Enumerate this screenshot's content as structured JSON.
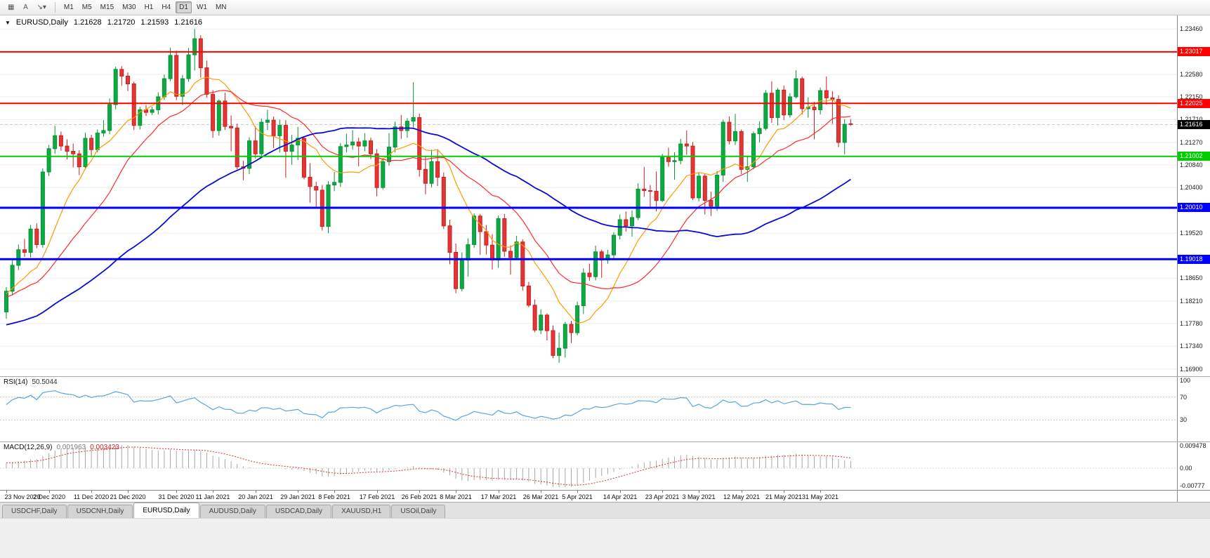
{
  "toolbar": {
    "icons": [
      {
        "name": "chart-type-icon",
        "glyph": "▦"
      },
      {
        "name": "text-tool-icon",
        "glyph": "A"
      },
      {
        "name": "draw-tool-icon",
        "glyph": "↘",
        "caret": "▾"
      }
    ],
    "timeframes": [
      "M1",
      "M5",
      "M15",
      "M30",
      "H1",
      "H4",
      "D1",
      "W1",
      "MN"
    ],
    "active_timeframe": "D1"
  },
  "chart": {
    "title": {
      "marker": "▼",
      "symbol": "EURUSD,Daily",
      "open": "1.21628",
      "high": "1.21720",
      "low": "1.21593",
      "close": "1.21616"
    }
  },
  "rsi_panel": {
    "name": "RSI(14)",
    "value": "50.5044"
  },
  "macd_panel": {
    "name": "MACD(12,26,9)",
    "main_value": "0.001963",
    "signal_value": "0.003423"
  },
  "tab_bar": {
    "tabs": [
      "USDCHF,Daily",
      "USDCNH,Daily",
      "EURUSD,Daily",
      "AUDUSD,Daily",
      "USDCAD,Daily",
      "XAUUSD,H1",
      "USOil,Daily"
    ],
    "active": "EURUSD,Daily"
  },
  "chart_data": {
    "type": "candlestick",
    "symbol": "EURUSD",
    "period": "Daily",
    "current_bar": {
      "open": 1.21628,
      "high": 1.2172,
      "low": 1.21593,
      "close": 1.21616
    },
    "candle_up_color": "#0bab44",
    "candle_up_border": "#089136",
    "candle_down_color": "#e53535",
    "candle_down_border": "#c32222",
    "y_axis": {
      "top_price": 1.2372,
      "bottom_price": 1.1676,
      "ticks": [
        "1.23460",
        "1.22580",
        "1.22150",
        "1.21710",
        "1.21270",
        "1.20840",
        "1.20400",
        "1.19520",
        "1.18650",
        "1.18210",
        "1.17780",
        "1.17340",
        "1.16900"
      ]
    },
    "x_axis": {
      "tick_indices": [
        0,
        7,
        14,
        20,
        28,
        34,
        41,
        48,
        54,
        61,
        68,
        74,
        81,
        88,
        94,
        101,
        108,
        114,
        121,
        128,
        134
      ],
      "tick_labels": [
        "23 Nov 2020",
        "2 Dec 2020",
        "11 Dec 2020",
        "21 Dec 2020",
        "31 Dec 2020",
        "11 Jan 2021",
        "20 Jan 2021",
        "29 Jan 2021",
        "8 Feb 2021",
        "17 Feb 2021",
        "26 Feb 2021",
        "8 Mar 2021",
        "17 Mar 2021",
        "26 Mar 2021",
        "5 Apr 2021",
        "14 Apr 2021",
        "23 Apr 2021",
        "3 May 2021",
        "12 May 2021",
        "21 May 2021",
        "31 May 2021"
      ]
    },
    "hlines": [
      {
        "price": 1.23017,
        "label": "1.23017",
        "color": "#fe0000",
        "width": 2
      },
      {
        "price": 1.22025,
        "label": "1.22025",
        "color": "#fe0000",
        "width": 2
      },
      {
        "price": 1.21002,
        "label": "1.21002",
        "color": "#00ce00",
        "width": 2
      },
      {
        "price": 1.2001,
        "label": "1.20010",
        "color": "#0000fe",
        "width": 3
      },
      {
        "price": 1.19018,
        "label": "1.19018",
        "color": "#0000fe",
        "width": 3
      }
    ],
    "bid": {
      "price": 1.21616,
      "label": "1.21616",
      "color": "#000000"
    },
    "moving_averages": [
      {
        "period": 10,
        "color": "#ff9a00",
        "width": 1.2
      },
      {
        "period": 20,
        "color": "#ff2a2a",
        "width": 1.2
      },
      {
        "period": 50,
        "color": "#0b0bd6",
        "width": 1.8
      }
    ],
    "rsi": {
      "period": 14,
      "color": "#57a7e0",
      "axis_labels": [
        "100",
        "70",
        "30"
      ],
      "levels_with_lines": [
        70,
        30
      ],
      "range": [
        0,
        100
      ]
    },
    "macd": {
      "fast": 12,
      "slow": 26,
      "signal": 9,
      "hist_color": "#a8a8a8",
      "signal_color": "#e03030",
      "axis_labels": [
        "0.009478",
        "0.00",
        "-0.00777"
      ],
      "range": [
        -0.00777,
        0.009478
      ]
    },
    "prehistory_closes": [
      1.174,
      1.1755,
      1.177,
      1.1762,
      1.1748,
      1.1735,
      1.172,
      1.1712,
      1.1725,
      1.174,
      1.1752,
      1.1745,
      1.173,
      1.1718,
      1.1705,
      1.1698,
      1.1712,
      1.1728,
      1.1745,
      1.176,
      1.1772,
      1.1785,
      1.177,
      1.1755,
      1.1742,
      1.1728,
      1.1715,
      1.1702,
      1.1718,
      1.1735,
      1.1812,
      1.1795,
      1.178,
      1.1808,
      1.1825,
      1.184,
      1.1862,
      1.185,
      1.1832,
      1.1818,
      1.1805,
      1.179,
      1.1808,
      1.1822,
      1.1838,
      1.1855,
      1.187,
      1.1858,
      1.1842,
      1.183
    ],
    "candles": [
      [
        1.18,
        1.1848,
        1.1787,
        1.184
      ],
      [
        1.184,
        1.1902,
        1.1832,
        1.189
      ],
      [
        1.189,
        1.193,
        1.1881,
        1.192
      ],
      [
        1.192,
        1.1941,
        1.1906,
        1.1915
      ],
      [
        1.1915,
        1.1968,
        1.1905,
        1.196
      ],
      [
        1.196,
        1.1971,
        1.1923,
        1.193
      ],
      [
        1.193,
        1.2077,
        1.1924,
        1.207
      ],
      [
        1.207,
        1.2122,
        1.2062,
        1.2115
      ],
      [
        1.2115,
        1.2159,
        1.2105,
        1.214
      ],
      [
        1.214,
        1.2148,
        1.2111,
        1.212
      ],
      [
        1.212,
        1.2133,
        1.2094,
        1.211
      ],
      [
        1.211,
        1.2125,
        1.2079,
        1.2105
      ],
      [
        1.2105,
        1.2112,
        1.2064,
        1.208
      ],
      [
        1.208,
        1.2146,
        1.2075,
        1.2135
      ],
      [
        1.2135,
        1.2142,
        1.21,
        1.2113
      ],
      [
        1.2113,
        1.2152,
        1.2108,
        1.2145
      ],
      [
        1.2145,
        1.217,
        1.2138,
        1.215
      ],
      [
        1.215,
        1.2212,
        1.2143,
        1.22
      ],
      [
        1.22,
        1.2273,
        1.2191,
        1.2268
      ],
      [
        1.2268,
        1.2274,
        1.2236,
        1.2255
      ],
      [
        1.2255,
        1.2262,
        1.2226,
        1.224
      ],
      [
        1.224,
        1.2244,
        1.2151,
        1.216
      ],
      [
        1.216,
        1.2196,
        1.2152,
        1.219
      ],
      [
        1.219,
        1.2199,
        1.2178,
        1.2185
      ],
      [
        1.2185,
        1.2196,
        1.218,
        1.219
      ],
      [
        1.219,
        1.2224,
        1.2181,
        1.2215
      ],
      [
        1.2215,
        1.2258,
        1.2209,
        1.225
      ],
      [
        1.225,
        1.231,
        1.2245,
        1.2295
      ],
      [
        1.2295,
        1.2304,
        1.2209,
        1.2216
      ],
      [
        1.2216,
        1.2257,
        1.2199,
        1.225
      ],
      [
        1.225,
        1.2309,
        1.2244,
        1.2296
      ],
      [
        1.2296,
        1.2346,
        1.2266,
        1.2327
      ],
      [
        1.2327,
        1.2334,
        1.2252,
        1.2271
      ],
      [
        1.2271,
        1.2285,
        1.2213,
        1.222
      ],
      [
        1.222,
        1.2228,
        1.2136,
        1.215
      ],
      [
        1.215,
        1.221,
        1.214,
        1.2207
      ],
      [
        1.2207,
        1.2223,
        1.2151,
        1.2158
      ],
      [
        1.2158,
        1.2179,
        1.211,
        1.2155
      ],
      [
        1.2155,
        1.2163,
        1.2075,
        1.208
      ],
      [
        1.208,
        1.2092,
        1.2054,
        1.2077
      ],
      [
        1.2077,
        1.2137,
        1.2066,
        1.213
      ],
      [
        1.213,
        1.2158,
        1.2096,
        1.2105
      ],
      [
        1.2105,
        1.2173,
        1.2099,
        1.2166
      ],
      [
        1.2166,
        1.219,
        1.2151,
        1.217
      ],
      [
        1.217,
        1.2177,
        1.2116,
        1.214
      ],
      [
        1.214,
        1.2171,
        1.2108,
        1.216
      ],
      [
        1.216,
        1.217,
        1.2059,
        1.211
      ],
      [
        1.211,
        1.2142,
        1.2084,
        1.2122
      ],
      [
        1.2122,
        1.2157,
        1.2093,
        1.2135
      ],
      [
        1.2135,
        1.2137,
        1.2056,
        1.206
      ],
      [
        1.206,
        1.2087,
        1.2011,
        1.2042
      ],
      [
        1.2042,
        1.2051,
        1.1999,
        1.2035
      ],
      [
        1.2035,
        1.2045,
        1.1957,
        1.1965
      ],
      [
        1.1965,
        1.2052,
        1.1952,
        1.2045
      ],
      [
        1.2045,
        1.207,
        1.2033,
        1.205
      ],
      [
        1.205,
        1.2126,
        1.2041,
        1.2119
      ],
      [
        1.2119,
        1.2144,
        1.2108,
        1.2122
      ],
      [
        1.2122,
        1.2151,
        1.2113,
        1.2128
      ],
      [
        1.2128,
        1.2136,
        1.2081,
        1.212
      ],
      [
        1.212,
        1.2145,
        1.211,
        1.213
      ],
      [
        1.213,
        1.2136,
        1.2095,
        1.2105
      ],
      [
        1.2105,
        1.2114,
        1.2023,
        1.204
      ],
      [
        1.204,
        1.2097,
        1.2036,
        1.209
      ],
      [
        1.209,
        1.2145,
        1.2082,
        1.2118
      ],
      [
        1.2118,
        1.2167,
        1.2108,
        1.2157
      ],
      [
        1.2157,
        1.218,
        1.2134,
        1.215
      ],
      [
        1.215,
        1.2174,
        1.2136,
        1.2168
      ],
      [
        1.2168,
        1.2243,
        1.2156,
        1.2175
      ],
      [
        1.2175,
        1.2183,
        1.2061,
        1.2075
      ],
      [
        1.2075,
        1.2101,
        1.2027,
        1.2048
      ],
      [
        1.2048,
        1.2113,
        1.204,
        1.209
      ],
      [
        1.209,
        1.2114,
        1.2043,
        1.206
      ],
      [
        1.206,
        1.2069,
        1.196,
        1.1966
      ],
      [
        1.1966,
        1.1978,
        1.1892,
        1.1915
      ],
      [
        1.1915,
        1.1932,
        1.1836,
        1.1845
      ],
      [
        1.1845,
        1.1915,
        1.184,
        1.19
      ],
      [
        1.19,
        1.1942,
        1.1868,
        1.193
      ],
      [
        1.193,
        1.199,
        1.1924,
        1.1985
      ],
      [
        1.1985,
        1.1989,
        1.191,
        1.1955
      ],
      [
        1.1955,
        1.1968,
        1.1911,
        1.1929
      ],
      [
        1.1929,
        1.195,
        1.1882,
        1.19
      ],
      [
        1.19,
        1.1986,
        1.1885,
        1.198
      ],
      [
        1.198,
        1.1989,
        1.1906,
        1.1917
      ],
      [
        1.1917,
        1.1928,
        1.1872,
        1.1905
      ],
      [
        1.1905,
        1.1947,
        1.19,
        1.1935
      ],
      [
        1.1935,
        1.194,
        1.1841,
        1.185
      ],
      [
        1.185,
        1.1858,
        1.1809,
        1.1813
      ],
      [
        1.1813,
        1.1824,
        1.1761,
        1.1765
      ],
      [
        1.1765,
        1.1805,
        1.1757,
        1.1794
      ],
      [
        1.1794,
        1.1797,
        1.1745,
        1.1764
      ],
      [
        1.1764,
        1.1774,
        1.1711,
        1.1716
      ],
      [
        1.1716,
        1.176,
        1.1702,
        1.173
      ],
      [
        1.173,
        1.1781,
        1.1712,
        1.1776
      ],
      [
        1.1776,
        1.1783,
        1.174,
        1.176
      ],
      [
        1.176,
        1.182,
        1.1755,
        1.1812
      ],
      [
        1.1812,
        1.1884,
        1.1796,
        1.1875
      ],
      [
        1.1875,
        1.1893,
        1.186,
        1.1868
      ],
      [
        1.1868,
        1.1928,
        1.1861,
        1.1916
      ],
      [
        1.1916,
        1.192,
        1.1866,
        1.19
      ],
      [
        1.19,
        1.192,
        1.1893,
        1.191
      ],
      [
        1.191,
        1.1954,
        1.1902,
        1.1948
      ],
      [
        1.1948,
        1.1988,
        1.194,
        1.1978
      ],
      [
        1.1978,
        1.1994,
        1.1955,
        1.1966
      ],
      [
        1.1966,
        1.1996,
        1.1945,
        1.1982
      ],
      [
        1.1982,
        1.2048,
        1.1977,
        1.2037
      ],
      [
        1.2037,
        1.208,
        1.2022,
        1.2034
      ],
      [
        1.2034,
        1.2045,
        1.2,
        1.2033
      ],
      [
        1.2033,
        1.2071,
        1.1994,
        1.2015
      ],
      [
        1.2015,
        1.2105,
        1.2012,
        1.2098
      ],
      [
        1.2098,
        1.2117,
        1.208,
        1.209
      ],
      [
        1.209,
        1.2108,
        1.2055,
        1.2092
      ],
      [
        1.2092,
        1.2134,
        1.2085,
        1.2124
      ],
      [
        1.2124,
        1.215,
        1.2103,
        1.212
      ],
      [
        1.212,
        1.2128,
        1.2016,
        1.202
      ],
      [
        1.202,
        1.2068,
        1.2013,
        1.2062
      ],
      [
        1.2062,
        1.2067,
        1.1988,
        1.2015
      ],
      [
        1.2015,
        1.2032,
        1.1985,
        1.2004
      ],
      [
        1.2004,
        1.2072,
        1.1995,
        1.2064
      ],
      [
        1.2064,
        1.2171,
        1.2051,
        1.2166
      ],
      [
        1.2166,
        1.2177,
        1.2123,
        1.213
      ],
      [
        1.213,
        1.2182,
        1.2122,
        1.2148
      ],
      [
        1.2148,
        1.2152,
        1.2066,
        1.2075
      ],
      [
        1.2075,
        1.21,
        1.2051,
        1.208
      ],
      [
        1.208,
        1.2148,
        1.2075,
        1.2144
      ],
      [
        1.2144,
        1.2168,
        1.2127,
        1.2154
      ],
      [
        1.2154,
        1.2228,
        1.215,
        1.2222
      ],
      [
        1.2222,
        1.2245,
        1.2165,
        1.2175
      ],
      [
        1.2175,
        1.2232,
        1.216,
        1.2228
      ],
      [
        1.2228,
        1.2237,
        1.217,
        1.218
      ],
      [
        1.218,
        1.2222,
        1.2175,
        1.2215
      ],
      [
        1.2215,
        1.2266,
        1.2212,
        1.225
      ],
      [
        1.225,
        1.2254,
        1.2181,
        1.2192
      ],
      [
        1.2192,
        1.2214,
        1.2175,
        1.2195
      ],
      [
        1.2195,
        1.2205,
        1.2133,
        1.219
      ],
      [
        1.219,
        1.2233,
        1.2181,
        1.2227
      ],
      [
        1.2227,
        1.2254,
        1.22,
        1.2213
      ],
      [
        1.2213,
        1.2226,
        1.2163,
        1.221
      ],
      [
        1.221,
        1.2218,
        1.2118,
        1.2127
      ],
      [
        1.2127,
        1.2172,
        1.2104,
        1.2162
      ],
      [
        1.2163,
        1.2172,
        1.2159,
        1.2162
      ]
    ]
  }
}
